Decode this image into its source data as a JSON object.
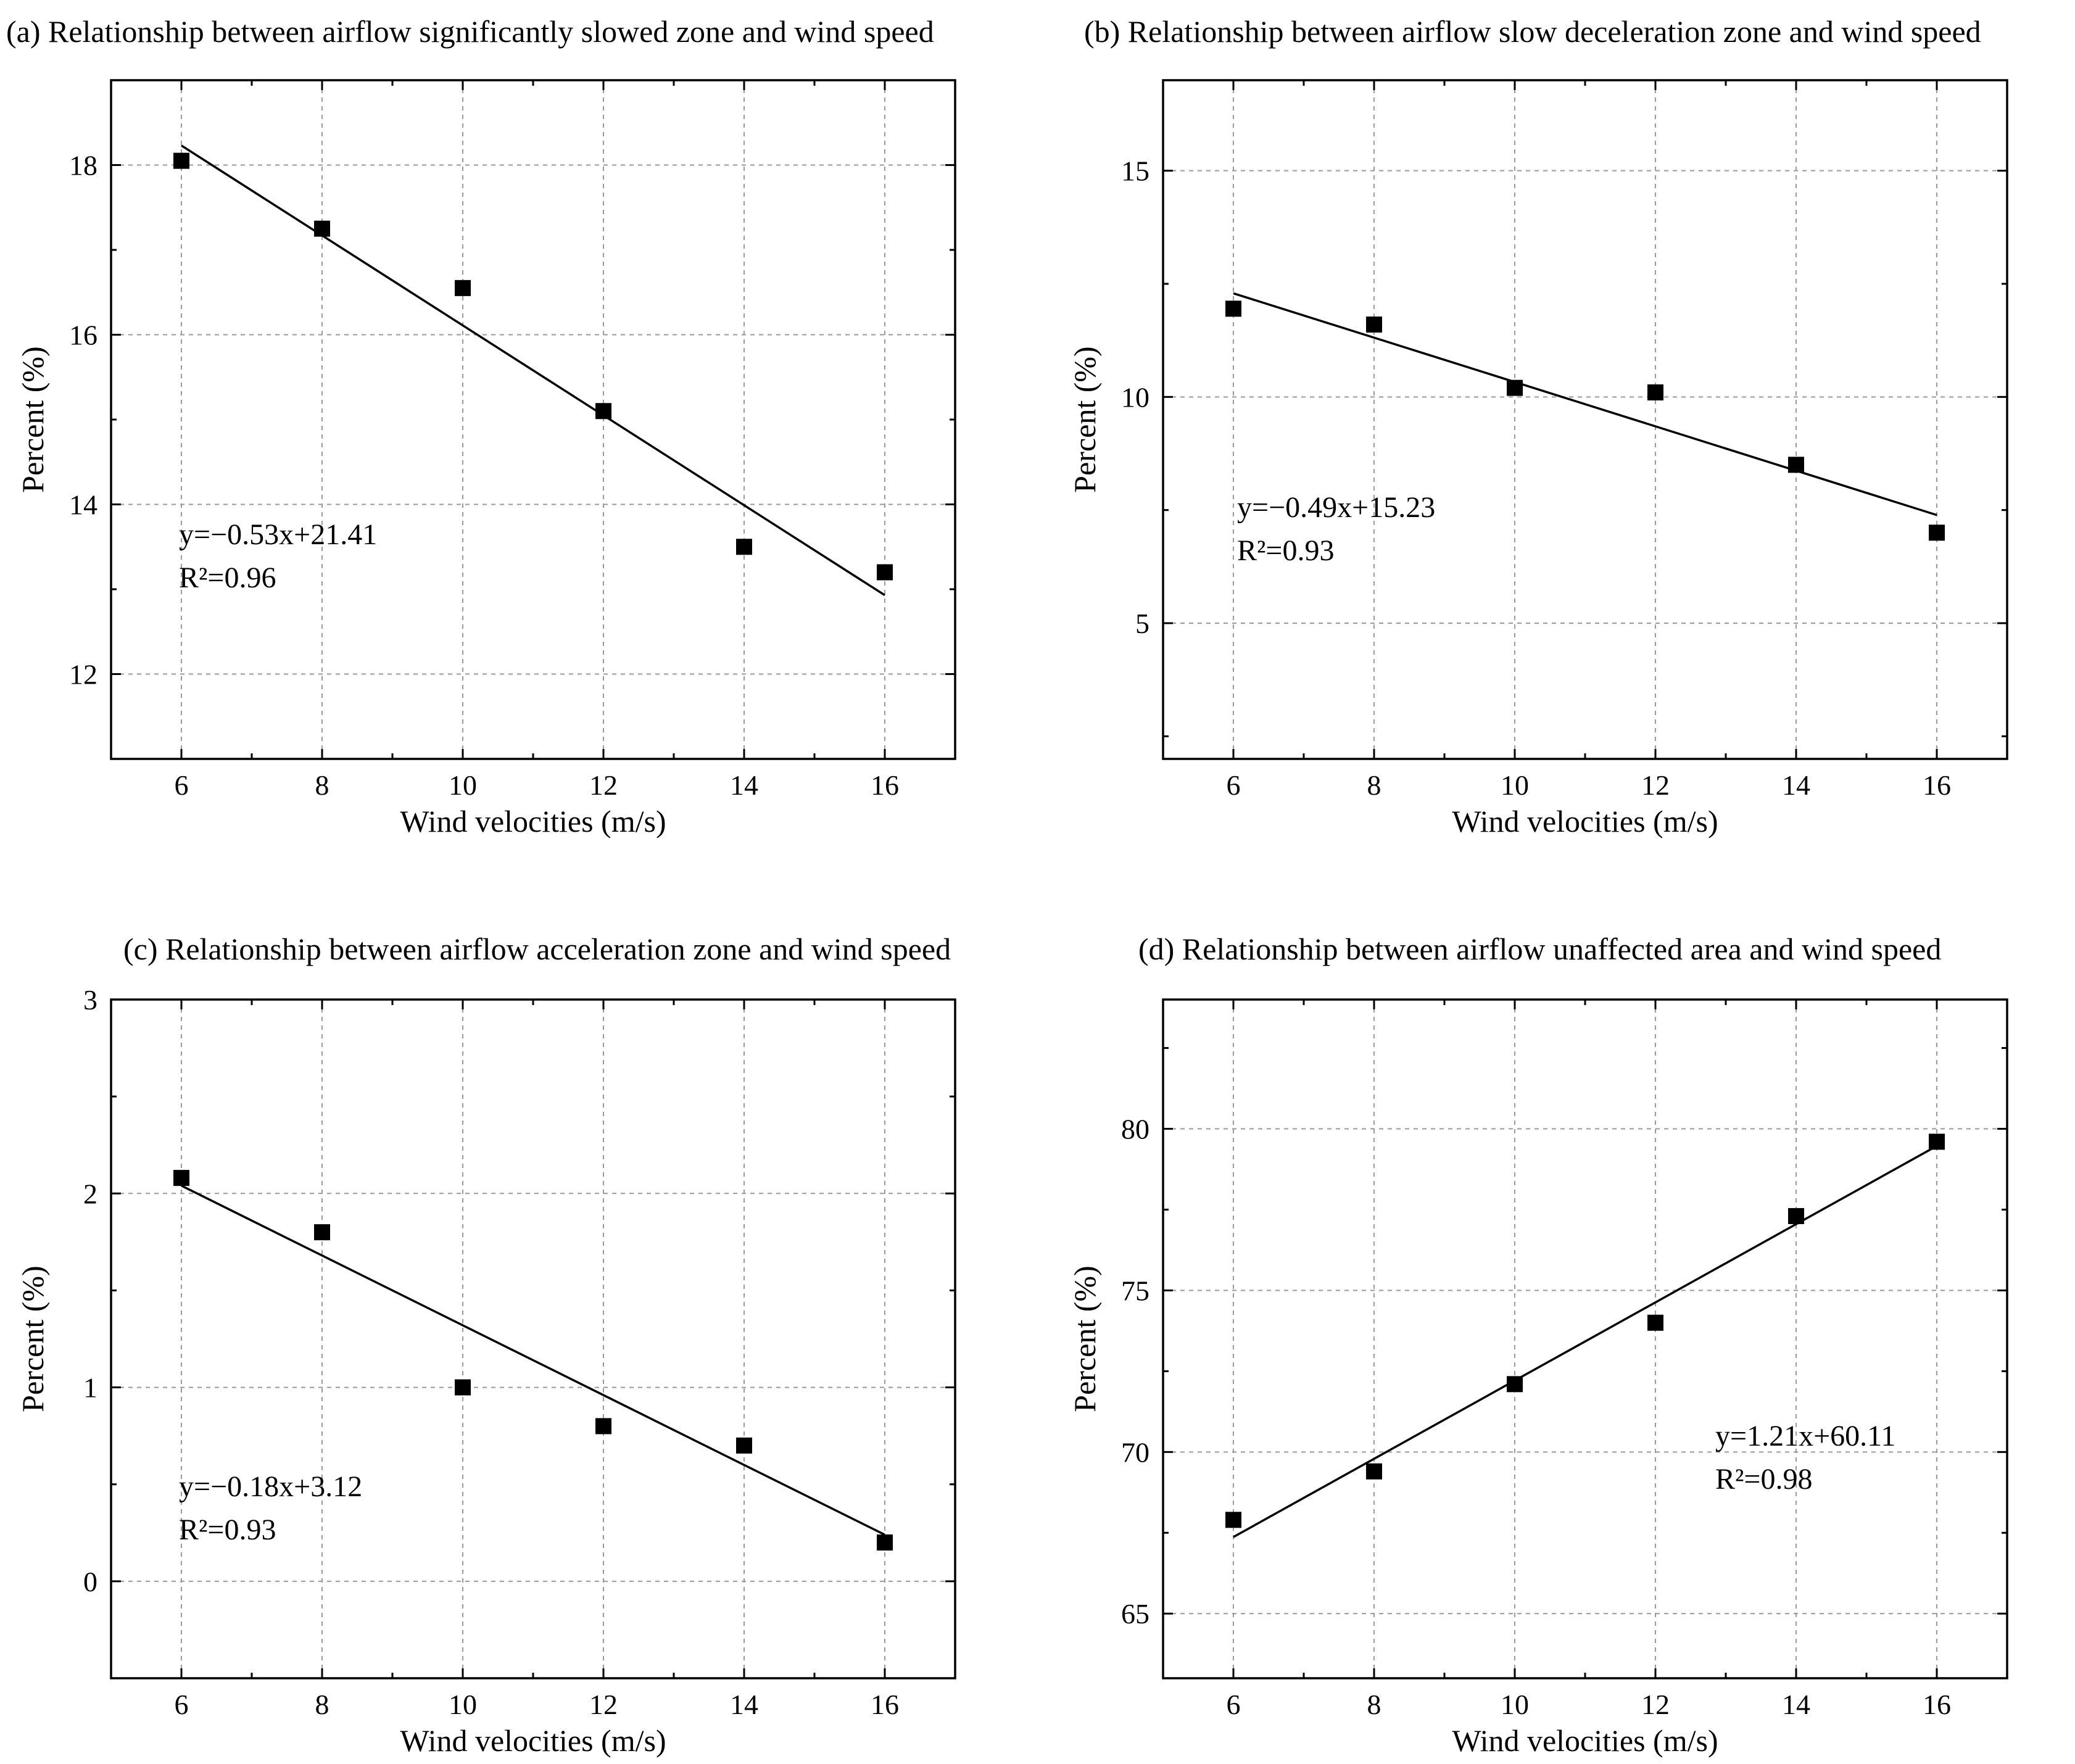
{
  "chart_data": [
    {
      "type": "scatter",
      "title": "(a) Relationship between airflow significantly slowed zone and wind speed",
      "xlabel": "Wind velocities (m/s)",
      "ylabel": "Percent (%)",
      "xlim": [
        5,
        17
      ],
      "ylim": [
        11,
        19
      ],
      "xticks": [
        6,
        8,
        10,
        12,
        14,
        16
      ],
      "yticks": [
        12,
        14,
        16,
        18
      ],
      "x": [
        6,
        8,
        10,
        12,
        14,
        16
      ],
      "values": [
        18.05,
        17.25,
        16.55,
        15.1,
        13.5,
        13.2
      ],
      "fit": {
        "slope": -0.53,
        "intercept": 21.41
      },
      "equation": "y=−0.53x+21.41",
      "r2": "R²=0.96",
      "grid": true
    },
    {
      "type": "scatter",
      "title": "(b) Relationship between airflow slow deceleration zone and wind speed",
      "xlabel": "Wind velocities (m/s)",
      "ylabel": "Percent (%)",
      "xlim": [
        5,
        17
      ],
      "ylim": [
        2,
        17
      ],
      "xticks": [
        6,
        8,
        10,
        12,
        14,
        16
      ],
      "yticks": [
        5,
        10,
        15
      ],
      "x": [
        6,
        8,
        10,
        12,
        14,
        16
      ],
      "values": [
        11.95,
        11.6,
        10.2,
        10.1,
        8.5,
        7.0
      ],
      "fit": {
        "slope": -0.49,
        "intercept": 15.23
      },
      "equation": "y=−0.49x+15.23",
      "r2": "R²=0.93",
      "grid": true
    },
    {
      "type": "scatter",
      "title": "(c) Relationship between airflow acceleration zone and wind speed",
      "xlabel": "Wind velocities (m/s)",
      "ylabel": "Percent (%)",
      "xlim": [
        5,
        17
      ],
      "ylim": [
        -0.5,
        3
      ],
      "xticks": [
        6,
        8,
        10,
        12,
        14,
        16
      ],
      "yticks": [
        0,
        1,
        2,
        3
      ],
      "x": [
        6,
        8,
        10,
        12,
        14,
        16
      ],
      "values": [
        2.08,
        1.8,
        1.0,
        0.8,
        0.7,
        0.2
      ],
      "fit": {
        "slope": -0.18,
        "intercept": 3.12
      },
      "equation": "y=−0.18x+3.12",
      "r2": "R²=0.93",
      "grid": true
    },
    {
      "type": "scatter",
      "title": "(d) Relationship between airflow unaffected area and wind speed",
      "xlabel": "Wind velocities (m/s)",
      "ylabel": "Percent (%)",
      "xlim": [
        5,
        17
      ],
      "ylim": [
        63,
        84
      ],
      "xticks": [
        6,
        8,
        10,
        12,
        14,
        16
      ],
      "yticks": [
        65,
        70,
        75,
        80
      ],
      "x": [
        6,
        8,
        10,
        12,
        14,
        16
      ],
      "values": [
        67.9,
        69.4,
        72.1,
        74.0,
        77.3,
        79.6
      ],
      "fit": {
        "slope": 1.21,
        "intercept": 60.11
      },
      "equation": "y=1.21x+60.11",
      "r2": "R²=0.98",
      "grid": true
    }
  ]
}
